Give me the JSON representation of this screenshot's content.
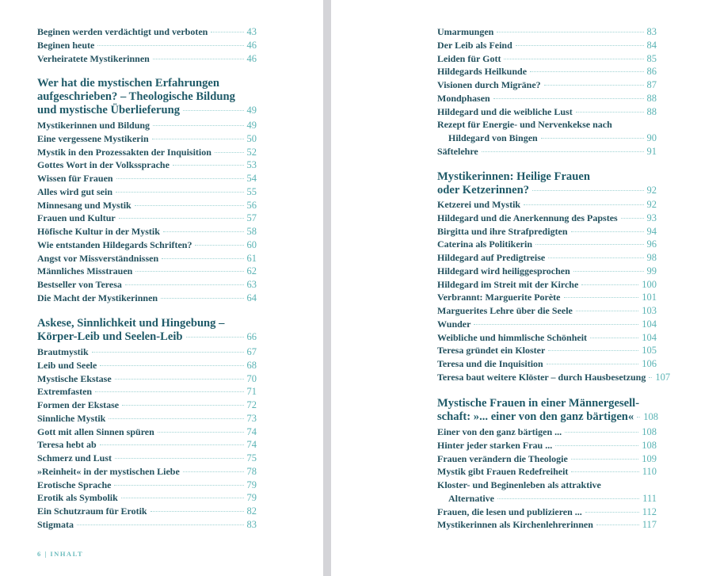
{
  "left": {
    "top_entries": [
      {
        "title": "Beginen werden verdächtigt und verboten",
        "page": "43"
      },
      {
        "title": "Beginen heute",
        "page": "46"
      },
      {
        "title": "Verheiratete Mystikerinnen",
        "page": "46"
      }
    ],
    "section1": {
      "heading_lines": [
        "Wer hat die mystischen Erfahrungen",
        "aufgeschrieben? – Theologische Bildung"
      ],
      "heading_last": "und mystische Überlieferung",
      "page": "49",
      "entries": [
        {
          "title": "Mystikerinnen und Bildung",
          "page": "49"
        },
        {
          "title": "Eine vergessene Mystikerin",
          "page": "50"
        },
        {
          "title": "Mystik in den Prozessakten der Inquisition",
          "page": "52"
        },
        {
          "title": "Gottes Wort in der Volkssprache",
          "page": "53"
        },
        {
          "title": "Wissen für Frauen",
          "page": "54"
        },
        {
          "title": "Alles wird gut sein",
          "page": "55"
        },
        {
          "title": "Minnesang und Mystik",
          "page": "56"
        },
        {
          "title": "Frauen und Kultur",
          "page": "57"
        },
        {
          "title": "Höfische Kultur in der Mystik",
          "page": "58"
        },
        {
          "title": "Wie entstanden Hildegards Schriften?",
          "page": "60"
        },
        {
          "title": "Angst vor Missverständnissen",
          "page": "61"
        },
        {
          "title": "Männliches Misstrauen",
          "page": "62"
        },
        {
          "title": "Bestseller von Teresa",
          "page": "63"
        },
        {
          "title": "Die Macht der Mystikerinnen",
          "page": "64"
        }
      ]
    },
    "section2": {
      "heading_lines": [
        "Askese, Sinnlichkeit und Hingebung –"
      ],
      "heading_last": "Körper-Leib und Seelen-Leib",
      "page": "66",
      "entries": [
        {
          "title": "Brautmystik",
          "page": "67"
        },
        {
          "title": "Leib und Seele",
          "page": "68"
        },
        {
          "title": "Mystische Ekstase",
          "page": "70"
        },
        {
          "title": "Extremfasten",
          "page": "71"
        },
        {
          "title": "Formen der Ekstase",
          "page": "72"
        },
        {
          "title": "Sinnliche Mystik",
          "page": "73"
        },
        {
          "title": "Gott mit allen Sinnen spüren",
          "page": "74"
        },
        {
          "title": "Teresa hebt ab",
          "page": "74"
        },
        {
          "title": "Schmerz und Lust",
          "page": "75"
        },
        {
          "title": "»Reinheit« in der mystischen Liebe",
          "page": "78"
        },
        {
          "title": "Erotische Sprache",
          "page": "79"
        },
        {
          "title": "Erotik als Symbolik",
          "page": "79"
        },
        {
          "title": "Ein Schutzraum für Erotik",
          "page": "82"
        },
        {
          "title": "Stigmata",
          "page": "83"
        }
      ]
    },
    "footer": "6 | INHALT"
  },
  "right": {
    "top_entries": [
      {
        "title": "Umarmungen",
        "page": "83"
      },
      {
        "title": "Der Leib als Feind",
        "page": "84"
      },
      {
        "title": "Leiden für Gott",
        "page": "85"
      },
      {
        "title": "Hildegards Heilkunde",
        "page": "86"
      },
      {
        "title": "Visionen durch Migräne?",
        "page": "87"
      },
      {
        "title": "Mondphasen",
        "page": "88"
      },
      {
        "title": "Hildegard und die weibliche Lust",
        "page": "88"
      },
      {
        "first": "Rezept für Energie- und Nervenkekse nach",
        "title": "Hildegard von Bingen",
        "page": "90"
      },
      {
        "title": "Säftelehre",
        "page": "91"
      }
    ],
    "section1": {
      "heading_lines": [
        "Mystikerinnen: Heilige Frauen"
      ],
      "heading_last": "oder Ketzerinnen?",
      "page": "92",
      "entries": [
        {
          "title": "Ketzerei und Mystik",
          "page": "92"
        },
        {
          "title": "Hildegard und die Anerkennung des Papstes",
          "page": "93"
        },
        {
          "title": "Birgitta und ihre Strafpredigten",
          "page": "94"
        },
        {
          "title": "Caterina als Politikerin",
          "page": "96"
        },
        {
          "title": "Hildegard auf Predigtreise",
          "page": "98"
        },
        {
          "title": "Hildegard wird heiliggesprochen",
          "page": "99"
        },
        {
          "title": "Hildegard im Streit mit der Kirche",
          "page": "100"
        },
        {
          "title": "Verbrannt: Marguerite Porète",
          "page": "101"
        },
        {
          "title": "Marguerites Lehre über die Seele",
          "page": "103"
        },
        {
          "title": "Wunder",
          "page": "104"
        },
        {
          "title": "Weibliche und himmlische Schönheit",
          "page": "104"
        },
        {
          "title": "Teresa gründet ein Kloster",
          "page": "105"
        },
        {
          "title": "Teresa und die Inquisition",
          "page": "106"
        },
        {
          "title": "Teresa baut weitere Klöster – durch Hausbesetzung",
          "page": "107"
        }
      ]
    },
    "section2": {
      "heading_lines": [
        "Mystische Frauen in einer Männergesell-"
      ],
      "heading_last": "schaft: »... einer von den ganz bärtigen«",
      "page": "108",
      "entries": [
        {
          "title": "Einer von den ganz bärtigen ...",
          "page": "108"
        },
        {
          "title": "Hinter jeder starken Frau ...",
          "page": "108"
        },
        {
          "title": "Frauen verändern die Theologie",
          "page": "109"
        },
        {
          "title": "Mystik gibt Frauen Redefreiheit",
          "page": "110"
        },
        {
          "first": "Kloster- und Beginenleben als attraktive",
          "title": "Alternative",
          "page": "111"
        },
        {
          "title": "Frauen, die lesen und publizieren ...",
          "page": "112"
        },
        {
          "title": "Mystikerinnen als Kirchenlehrerinnen",
          "page": "117"
        }
      ]
    }
  },
  "colors": {
    "text": "#24525f",
    "heading": "#1f5a68",
    "page_number": "#5ab3b4",
    "gutter": "#d4d4d8"
  }
}
